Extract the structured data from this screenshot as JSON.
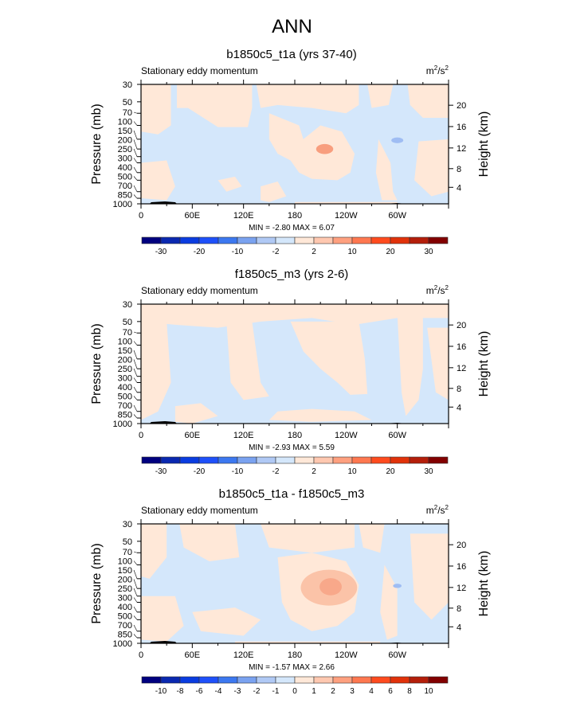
{
  "figure_title": "ANN",
  "chart_data": [
    {
      "type": "heatmap",
      "title": "b1850c5_t1a (yrs 37-40)",
      "left_string": "Stationary eddy momentum",
      "units": "m2/s2",
      "ylabel": "Pressure (mb)",
      "ylabel_right": "Height (km)",
      "x_ticks": [
        "0",
        "60E",
        "120E",
        "180",
        "120W",
        "60W"
      ],
      "y_ticks": [
        "30",
        "50",
        "70",
        "100",
        "150",
        "200",
        "250",
        "300",
        "400",
        "500",
        "700",
        "850",
        "1000"
      ],
      "y_right_ticks": [
        "4",
        "8",
        "12",
        "16",
        "20"
      ],
      "xlim": [
        0,
        360
      ],
      "ylim": [
        1000,
        30
      ],
      "min_max_text": "MIN =  -2.80  MAX =   6.07",
      "min": -2.8,
      "max": 6.07,
      "colorbar_labels": [
        "-30",
        "-20",
        "-10",
        "-2",
        "2",
        "10",
        "20",
        "30"
      ]
    },
    {
      "type": "heatmap",
      "title": "f1850c5_m3 (yrs 2-6)",
      "left_string": "Stationary eddy momentum",
      "units": "m2/s2",
      "ylabel": "Pressure (mb)",
      "ylabel_right": "Height (km)",
      "x_ticks": [
        "0",
        "60E",
        "120E",
        "180",
        "120W",
        "60W"
      ],
      "y_ticks": [
        "30",
        "50",
        "70",
        "100",
        "150",
        "200",
        "250",
        "300",
        "400",
        "500",
        "700",
        "850",
        "1000"
      ],
      "y_right_ticks": [
        "4",
        "8",
        "12",
        "16",
        "20"
      ],
      "xlim": [
        0,
        360
      ],
      "ylim": [
        1000,
        30
      ],
      "min_max_text": "MIN =  -2.93  MAX =   5.59",
      "min": -2.93,
      "max": 5.59,
      "colorbar_labels": [
        "-30",
        "-20",
        "-10",
        "-2",
        "2",
        "10",
        "20",
        "30"
      ]
    },
    {
      "type": "heatmap",
      "title": "b1850c5_t1a - f1850c5_m3",
      "left_string": "Stationary eddy momentum",
      "units": "m2/s2",
      "ylabel": "Pressure (mb)",
      "ylabel_right": "Height (km)",
      "x_ticks": [
        "0",
        "60E",
        "120E",
        "180",
        "120W",
        "60W"
      ],
      "y_ticks": [
        "30",
        "50",
        "70",
        "100",
        "150",
        "200",
        "250",
        "300",
        "400",
        "500",
        "700",
        "850",
        "1000"
      ],
      "y_right_ticks": [
        "4",
        "8",
        "12",
        "16",
        "20"
      ],
      "xlim": [
        0,
        360
      ],
      "ylim": [
        1000,
        30
      ],
      "min_max_text": "MIN =  -1.57  MAX =   2.66",
      "min": -1.57,
      "max": 2.66,
      "colorbar_labels": [
        "-10",
        "-8",
        "-6",
        "-4",
        "-3",
        "-2",
        "-1",
        "0",
        "1",
        "2",
        "3",
        "4",
        "6",
        "8",
        "10"
      ]
    }
  ],
  "colors": [
    "#00007f",
    "#0a28b0",
    "#0a3ce0",
    "#1e50fa",
    "#3c78f0",
    "#7aa2f0",
    "#b0c9f5",
    "#d4e7fb",
    "#ffe8d8",
    "#ffc8b0",
    "#ffa07f",
    "#ff7850",
    "#ff4b1e",
    "#e1320a",
    "#b41e0a",
    "#820000"
  ]
}
